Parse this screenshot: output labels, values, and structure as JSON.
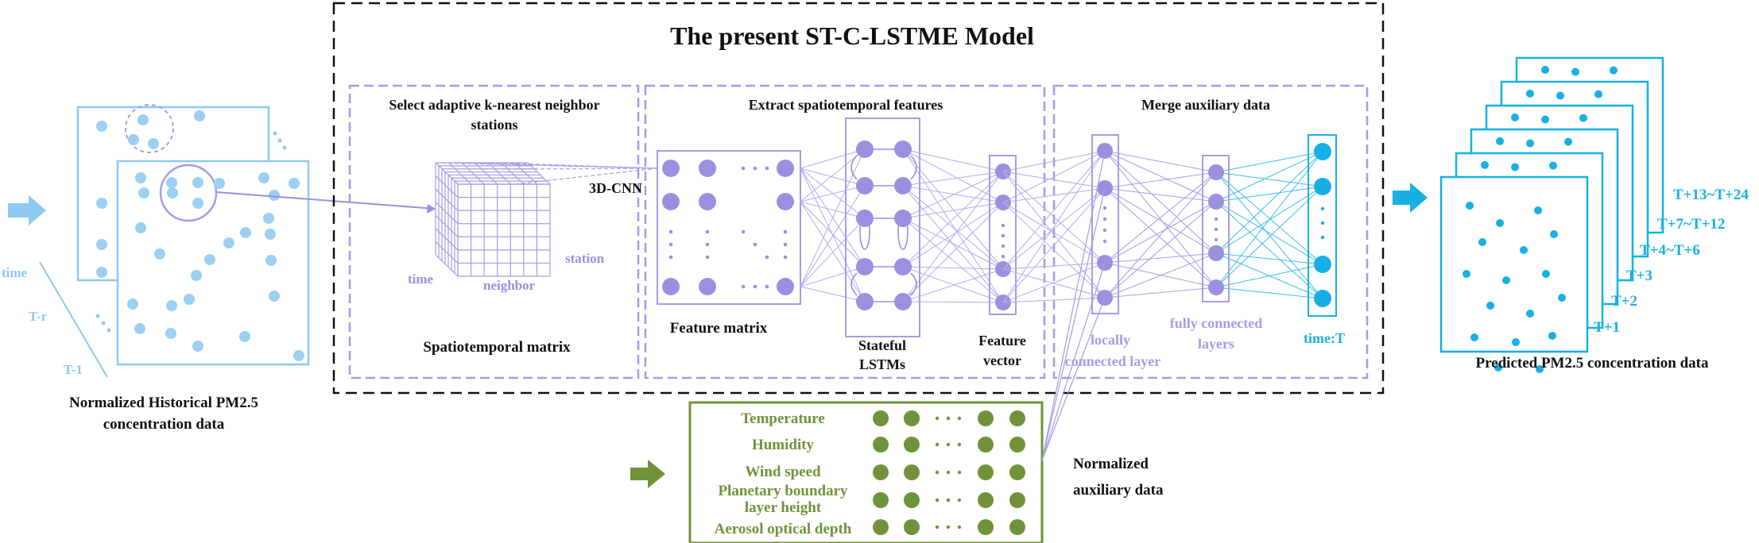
{
  "model_title": "The present ST-C-LSTME Model",
  "panels": {
    "select_title_line1": "Select adaptive k-nearest neighbor",
    "select_title_line2": "stations",
    "extract_title": "Extract spatiotemporal features",
    "merge_title": "Merge auxiliary data"
  },
  "historical": {
    "label_time": "time",
    "label_tr": "T-r",
    "label_t1": "T-1",
    "caption_line1": "Normalized Historical PM2.5",
    "caption_line2": "concentration data"
  },
  "cube": {
    "axis_time": "time",
    "axis_station": "station",
    "axis_neighbor": "neighbor",
    "caption": "Spatiotemporal matrix"
  },
  "cnn_label": "3D-CNN",
  "feature_matrix_caption": "Feature matrix",
  "lstm_caption_line1": "Stateful",
  "lstm_caption_line2": "LSTMs",
  "feature_vector_caption_line1": "Feature",
  "feature_vector_caption_line2": "vector",
  "locally_connected_line1": "locally",
  "locally_connected_line2": "connected layer",
  "fully_connected_line1": "fully connected",
  "fully_connected_line2": "layers",
  "time_t_label": "time:T",
  "auxiliary": {
    "rows": [
      "Temperature",
      "Humidity",
      "Wind speed",
      "Planetary boundary",
      "layer height",
      "Aerosol optical depth"
    ],
    "caption_line1": "Normalized",
    "caption_line2": "auxiliary data"
  },
  "predicted": {
    "horizons": [
      "T+13~T+24",
      "T+7~T+12",
      "T+4~T+6",
      "T+3",
      "T+2",
      "T+1"
    ],
    "caption": "Predicted PM2.5 concentration data"
  },
  "colors": {
    "historical_blue": "#8fc9f0",
    "historical_dot": "#9dcff2",
    "purple": "#9990e0",
    "purple_dark": "#8a80d8",
    "cyan": "#16b0e4",
    "green": "#71923a",
    "black": "#111111"
  },
  "icons": {
    "input_arrow": "right-arrow-icon",
    "aux_arrow": "right-arrow-icon",
    "output_arrow": "right-arrow-icon"
  }
}
